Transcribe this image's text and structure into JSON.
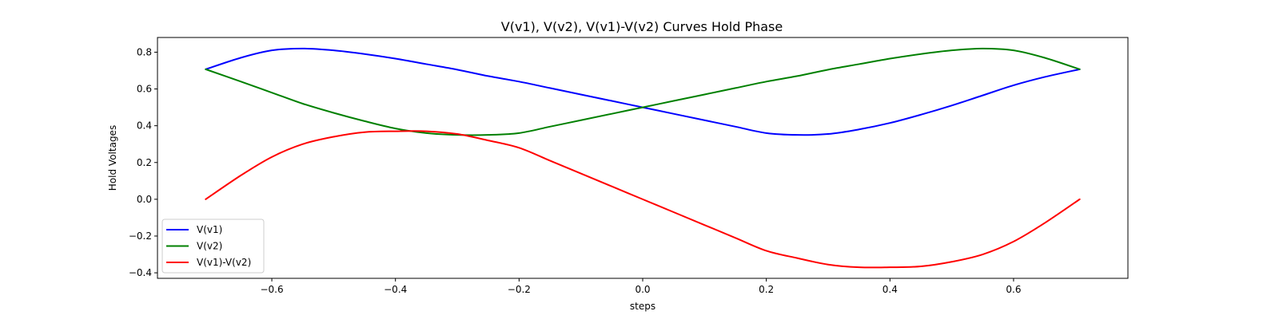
{
  "chart_data": {
    "type": "line",
    "title": "V(v1), V(v2), V(v1)-V(v2) Curves Hold Phase",
    "xlabel": "steps",
    "ylabel": "Hold Voltages",
    "xlim": [
      -0.785,
      0.785
    ],
    "ylim": [
      -0.43,
      0.88
    ],
    "xticks": [
      -0.6,
      -0.4,
      -0.2,
      0.0,
      0.2,
      0.4,
      0.6
    ],
    "xtick_labels": [
      "−0.6",
      "−0.4",
      "−0.2",
      "0.0",
      "0.2",
      "0.4",
      "0.6"
    ],
    "yticks": [
      -0.4,
      -0.2,
      0.0,
      0.2,
      0.4,
      0.6,
      0.8
    ],
    "ytick_labels": [
      "−0.4",
      "−0.2",
      "0.0",
      "0.2",
      "0.4",
      "0.6",
      "0.8"
    ],
    "grid": false,
    "legend_position": "lower-left",
    "x": [
      -0.707,
      -0.65,
      -0.6,
      -0.55,
      -0.5,
      -0.45,
      -0.4,
      -0.35,
      -0.3,
      -0.25,
      -0.2,
      -0.15,
      -0.1,
      -0.05,
      0.0,
      0.05,
      0.1,
      0.15,
      0.2,
      0.25,
      0.3,
      0.35,
      0.4,
      0.45,
      0.5,
      0.55,
      0.6,
      0.65,
      0.707
    ],
    "series": [
      {
        "name": "V(v1)",
        "color": "#0000ff",
        "values": [
          0.707,
          0.77,
          0.81,
          0.82,
          0.81,
          0.79,
          0.765,
          0.735,
          0.705,
          0.67,
          0.64,
          0.605,
          0.57,
          0.535,
          0.5,
          0.465,
          0.43,
          0.395,
          0.36,
          0.35,
          0.355,
          0.38,
          0.415,
          0.46,
          0.51,
          0.565,
          0.62,
          0.665,
          0.707
        ]
      },
      {
        "name": "V(v2)",
        "color": "#008000",
        "values": [
          0.707,
          0.64,
          0.58,
          0.52,
          0.47,
          0.425,
          0.385,
          0.36,
          0.35,
          0.35,
          0.36,
          0.395,
          0.43,
          0.465,
          0.5,
          0.535,
          0.57,
          0.605,
          0.64,
          0.67,
          0.705,
          0.735,
          0.765,
          0.79,
          0.81,
          0.82,
          0.81,
          0.77,
          0.707
        ]
      },
      {
        "name": "V(v1)-V(v2)",
        "color": "#ff0000",
        "values": [
          0.0,
          0.13,
          0.23,
          0.3,
          0.34,
          0.365,
          0.37,
          0.37,
          0.355,
          0.32,
          0.28,
          0.21,
          0.14,
          0.07,
          0.0,
          -0.07,
          -0.14,
          -0.21,
          -0.28,
          -0.32,
          -0.355,
          -0.37,
          -0.37,
          -0.365,
          -0.34,
          -0.3,
          -0.23,
          -0.13,
          0.0
        ]
      }
    ]
  }
}
